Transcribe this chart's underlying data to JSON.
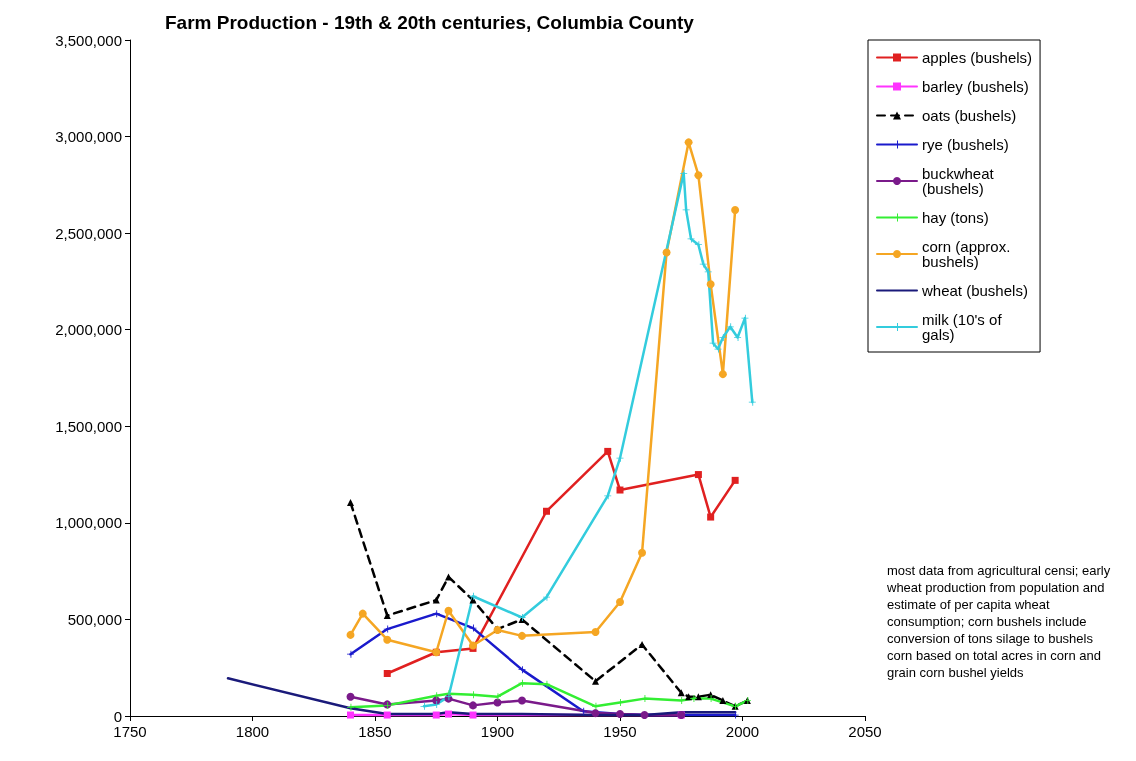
{
  "chart_data": {
    "type": "line",
    "title": "Farm Production - 19th & 20th centuries, Columbia County",
    "xlim": [
      1750,
      2050
    ],
    "xticks": [
      1750,
      1800,
      1850,
      1900,
      1950,
      2000,
      2050
    ],
    "ylim": [
      0,
      3500000
    ],
    "yticks": [
      0,
      {
        "value": 500000,
        "label": "500,000"
      },
      {
        "value": 1000000,
        "label": "1,000,000"
      },
      {
        "value": 1500000,
        "label": "1,500,000"
      },
      {
        "value": 2000000,
        "label": "2,000,000"
      },
      {
        "value": 2500000,
        "label": "2,500,000"
      },
      {
        "value": 3000000,
        "label": "3,000,000"
      },
      {
        "value": 3500000,
        "label": "3,500,000"
      }
    ],
    "grid": false,
    "legend": "right",
    "line_style": "solid",
    "annotations": [
      "most data from agricultural censi; early wheat production from population and estimate of per capita wheat consumption; corn bushels include conversion of tons silage to bushels corn based on total acres in corn and grain corn bushel yields"
    ],
    "series": [
      {
        "name": "apples (bushels)",
        "color": "#e02020",
        "marker": "square",
        "x": [
          1855,
          1875,
          1890,
          1920,
          1945,
          1950,
          1982,
          1987,
          1997
        ],
        "values": [
          220000,
          330000,
          350000,
          1060000,
          1370000,
          1170000,
          1250000,
          1030000,
          1220000
        ]
      },
      {
        "name": "barley (bushels)",
        "color": "#ff33ff",
        "marker": "square",
        "x": [
          1840,
          1855,
          1875,
          1880,
          1890,
          1975
        ],
        "values": [
          5000,
          5000,
          5000,
          10000,
          5000,
          5000
        ]
      },
      {
        "name": "oats (bushels)",
        "color": "#000000",
        "marker": "triangle",
        "line_style": "dashed",
        "x": [
          1840,
          1855,
          1875,
          1880,
          1890,
          1900,
          1910,
          1940,
          1959,
          1975,
          1978,
          1982,
          1987,
          1992,
          1997,
          2002
        ],
        "values": [
          1105000,
          520000,
          600000,
          720000,
          600000,
          450000,
          500000,
          180000,
          370000,
          120000,
          100000,
          100000,
          110000,
          80000,
          50000,
          80000
        ]
      },
      {
        "name": "rye (bushels)",
        "color": "#1a1acc",
        "marker": "cross",
        "x": [
          1840,
          1855,
          1875,
          1890,
          1910,
          1935,
          1950,
          1960,
          1975,
          1997
        ],
        "values": [
          320000,
          450000,
          530000,
          455000,
          240000,
          25000,
          10000,
          5000,
          5000,
          5000
        ]
      },
      {
        "name": "buckwheat (bushels)",
        "color": "#7a1a8a",
        "marker": "circle",
        "x": [
          1840,
          1855,
          1875,
          1880,
          1890,
          1900,
          1910,
          1940,
          1950,
          1960,
          1975
        ],
        "values": [
          100000,
          60000,
          80000,
          90000,
          55000,
          70000,
          80000,
          15000,
          10000,
          5000,
          5000
        ]
      },
      {
        "name": "hay (tons)",
        "color": "#33ee33",
        "marker": "cross",
        "x": [
          1840,
          1855,
          1875,
          1880,
          1890,
          1900,
          1910,
          1920,
          1940,
          1950,
          1960,
          1975,
          1980,
          1987,
          1997,
          2002
        ],
        "values": [
          45000,
          55000,
          105000,
          115000,
          110000,
          100000,
          170000,
          165000,
          50000,
          70000,
          90000,
          80000,
          90000,
          90000,
          50000,
          80000
        ]
      },
      {
        "name": "corn (approx. bushels)",
        "color": "#f5a623",
        "marker": "circle",
        "x": [
          1840,
          1845,
          1855,
          1875,
          1880,
          1890,
          1900,
          1910,
          1940,
          1950,
          1959,
          1969,
          1978,
          1982,
          1987,
          1992,
          1997
        ],
        "values": [
          420000,
          530000,
          395000,
          330000,
          545000,
          365000,
          445000,
          415000,
          435000,
          590000,
          845000,
          2400000,
          2970000,
          2800000,
          2235000,
          1770000,
          2620000
        ]
      },
      {
        "name": "wheat (bushels)",
        "color": "#1a1a7a",
        "marker": "none",
        "x": [
          1790,
          1840,
          1855,
          1875,
          1880,
          1890,
          1910,
          1940,
          1950,
          1960,
          1975,
          1980,
          1997
        ],
        "values": [
          195000,
          40000,
          10000,
          10000,
          20000,
          10000,
          10000,
          5000,
          5000,
          5000,
          20000,
          20000,
          20000
        ]
      },
      {
        "name": "milk (10's of gals)",
        "color": "#33ccdd",
        "marker": "cross",
        "x": [
          1870,
          1875,
          1880,
          1890,
          1910,
          1920,
          1945,
          1950,
          1976,
          1977,
          1979,
          1982,
          1984,
          1986,
          1988,
          1990,
          1992,
          1995,
          1998,
          2001,
          2004
        ],
        "values": [
          50000,
          60000,
          100000,
          620000,
          510000,
          615000,
          1140000,
          1335000,
          2810000,
          2620000,
          2470000,
          2440000,
          2340000,
          2300000,
          1930000,
          1900000,
          1960000,
          2015000,
          1960000,
          2060000,
          1625000
        ]
      }
    ]
  }
}
